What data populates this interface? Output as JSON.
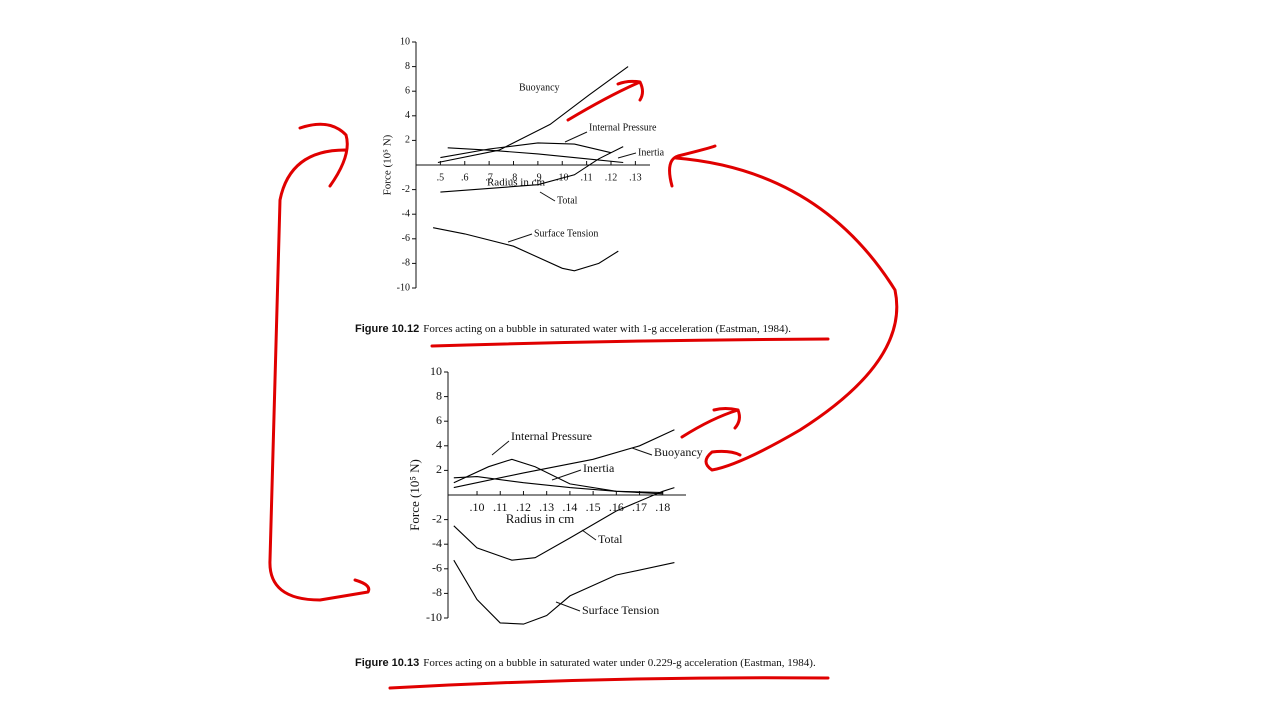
{
  "chart_data": [
    {
      "type": "line",
      "xlabel": "Radius in cm",
      "ylabel": "Force (10⁵ N)",
      "xlim": [
        0.04,
        0.136
      ],
      "ylim": [
        -10,
        10
      ],
      "xticks": [
        {
          "value": 0.05,
          "label": ".5"
        },
        {
          "value": 0.06,
          "label": ".6"
        },
        {
          "value": 0.07,
          "label": ".7"
        },
        {
          "value": 0.08,
          "label": ".8"
        },
        {
          "value": 0.09,
          "label": ".9"
        },
        {
          "value": 0.1,
          "label": ".10"
        },
        {
          "value": 0.11,
          "label": ".11"
        },
        {
          "value": 0.12,
          "label": ".12"
        },
        {
          "value": 0.13,
          "label": ".13"
        }
      ],
      "yticks": [
        10,
        8,
        6,
        4,
        2,
        -2,
        -4,
        -6,
        -8,
        -10
      ],
      "series": [
        {
          "name": "Buoyancy",
          "color": "#000000",
          "x": [
            0.049,
            0.074,
            0.095,
            0.111,
            0.127
          ],
          "values": [
            0.2,
            1.2,
            3.3,
            5.7,
            8.0
          ]
        },
        {
          "name": "Internal Pressure",
          "color": "#000000",
          "x": [
            0.05,
            0.07,
            0.09,
            0.105,
            0.12
          ],
          "values": [
            0.6,
            1.3,
            1.8,
            1.7,
            1.0
          ]
        },
        {
          "name": "Inertia",
          "color": "#000000",
          "x": [
            0.053,
            0.07,
            0.09,
            0.11,
            0.125
          ],
          "values": [
            1.4,
            1.2,
            0.9,
            0.5,
            0.2
          ]
        },
        {
          "name": "Total",
          "color": "#000000",
          "x": [
            0.05,
            0.07,
            0.09,
            0.105,
            0.115,
            0.125
          ],
          "values": [
            -2.2,
            -1.9,
            -1.6,
            -0.8,
            0.5,
            1.5
          ]
        },
        {
          "name": "Surface Tension",
          "color": "#000000",
          "x": [
            0.047,
            0.06,
            0.08,
            0.1,
            0.105,
            0.115,
            0.123
          ],
          "values": [
            -5.1,
            -5.6,
            -6.6,
            -8.4,
            -8.6,
            -8.0,
            -7.0
          ]
        }
      ]
    },
    {
      "type": "line",
      "xlabel": "Radius in cm",
      "ylabel": "Force (10⁵ N)",
      "xlim": [
        0.0875,
        0.19
      ],
      "ylim": [
        -10,
        10
      ],
      "xticks": [
        {
          "value": 0.1,
          "label": ".10"
        },
        {
          "value": 0.11,
          "label": ".11"
        },
        {
          "value": 0.12,
          "label": ".12"
        },
        {
          "value": 0.13,
          "label": ".13"
        },
        {
          "value": 0.14,
          "label": ".14"
        },
        {
          "value": 0.15,
          "label": ".15"
        },
        {
          "value": 0.16,
          "label": ".16"
        },
        {
          "value": 0.17,
          "label": ".17"
        },
        {
          "value": 0.18,
          "label": ".18"
        }
      ],
      "yticks": [
        10,
        8,
        6,
        4,
        2,
        -2,
        -4,
        -6,
        -8,
        -10
      ],
      "series": [
        {
          "name": "Internal Pressure",
          "color": "#000000",
          "x": [
            0.09,
            0.105,
            0.115,
            0.125,
            0.14,
            0.16,
            0.18
          ],
          "values": [
            1.0,
            2.3,
            2.9,
            2.3,
            0.9,
            0.3,
            0.2
          ]
        },
        {
          "name": "Buoyancy",
          "color": "#000000",
          "x": [
            0.09,
            0.12,
            0.15,
            0.17,
            0.185
          ],
          "values": [
            0.6,
            1.8,
            2.9,
            4.0,
            5.3
          ]
        },
        {
          "name": "Inertia",
          "color": "#000000",
          "x": [
            0.09,
            0.1,
            0.12,
            0.14,
            0.16,
            0.18
          ],
          "values": [
            1.4,
            1.5,
            1.0,
            0.6,
            0.3,
            0.1
          ]
        },
        {
          "name": "Total",
          "color": "#000000",
          "x": [
            0.09,
            0.1,
            0.115,
            0.125,
            0.14,
            0.16,
            0.18,
            0.185
          ],
          "values": [
            -2.5,
            -4.3,
            -5.3,
            -5.1,
            -3.5,
            -1.3,
            0.3,
            0.6
          ]
        },
        {
          "name": "Surface Tension",
          "color": "#000000",
          "x": [
            0.09,
            0.1,
            0.11,
            0.12,
            0.13,
            0.14,
            0.16,
            0.185
          ],
          "values": [
            -5.3,
            -8.5,
            -10.4,
            -10.5,
            -9.8,
            -8.2,
            -6.5,
            -5.5
          ]
        }
      ]
    }
  ],
  "captions": [
    {
      "label": "Figure 10.12",
      "text": "Forces acting on a bubble in saturated water with 1-g acceleration (Eastman, 1984)."
    },
    {
      "label": "Figure 10.13",
      "text": "Forces acting on a bubble in saturated water under 0.229-g acceleration (Eastman, 1984)."
    }
  ]
}
